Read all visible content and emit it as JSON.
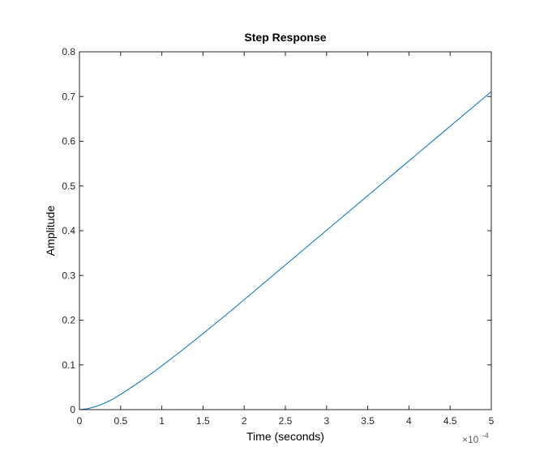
{
  "chart_data": {
    "type": "line",
    "title": "Step Response",
    "xlabel": "Time (seconds)",
    "ylabel": "Amplitude",
    "x_scale_factor_label": {
      "base": "×10",
      "exponent": "-4"
    },
    "xlim": [
      0,
      0.0005
    ],
    "ylim": [
      0,
      0.8
    ],
    "x_ticks": [
      0,
      5e-05,
      0.0001,
      0.00015,
      0.0002,
      0.00025,
      0.0003,
      0.00035,
      0.0004,
      0.00045,
      0.0005
    ],
    "x_tick_labels": [
      "0",
      "0.5",
      "1",
      "1.5",
      "2",
      "2.5",
      "3",
      "3.5",
      "4",
      "4.5",
      "5"
    ],
    "y_ticks": [
      0,
      0.1,
      0.2,
      0.3,
      0.4,
      0.5,
      0.6,
      0.7,
      0.8
    ],
    "y_tick_labels": [
      "0",
      "0.1",
      "0.2",
      "0.3",
      "0.4",
      "0.5",
      "0.6",
      "0.7",
      "0.8"
    ],
    "grid": false,
    "box": true,
    "series": [
      {
        "color": "#0072BD",
        "x": [
          0,
          1e-05,
          2e-05,
          3e-05,
          4e-05,
          5e-05,
          6e-05,
          7e-05,
          8e-05,
          9e-05,
          0.0001,
          0.00012,
          0.00014,
          0.00016,
          0.00018,
          0.0002,
          0.00022,
          0.00024,
          0.00026,
          0.00028,
          0.0003,
          0.00032,
          0.00034,
          0.00036,
          0.00038,
          0.0004,
          0.00042,
          0.00044,
          0.00046,
          0.00048,
          0.0005
        ],
        "y": [
          0,
          0.002,
          0.007,
          0.014,
          0.023,
          0.034,
          0.046,
          0.058,
          0.071,
          0.084,
          0.098,
          0.126,
          0.155,
          0.185,
          0.215,
          0.246,
          0.277,
          0.308,
          0.339,
          0.37,
          0.401,
          0.432,
          0.463,
          0.494,
          0.525,
          0.556,
          0.587,
          0.618,
          0.649,
          0.68,
          0.711
        ]
      }
    ]
  }
}
